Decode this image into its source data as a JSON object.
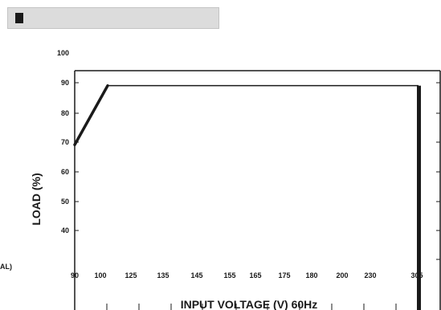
{
  "header": {
    "title": ""
  },
  "chart_data": {
    "type": "line",
    "title": "",
    "xlabel": "INPUT VOLTAGE (V) 60Hz",
    "ylabel": "LOAD (%)",
    "x_categories": [
      "90",
      "100",
      "125",
      "135",
      "145",
      "155",
      "165",
      "175",
      "180",
      "200",
      "230",
      "305"
    ],
    "y_ticks": [
      "100",
      "90",
      "80",
      "70",
      "60",
      "50",
      "40"
    ],
    "series": [
      {
        "points": [
          {
            "x": "90",
            "y": 69
          },
          {
            "x": "100",
            "y": 89
          },
          {
            "x": "305",
            "y": 89
          }
        ]
      }
    ],
    "ylim": [
      30,
      100
    ],
    "grid": false,
    "left_edge_text": "AL)"
  }
}
